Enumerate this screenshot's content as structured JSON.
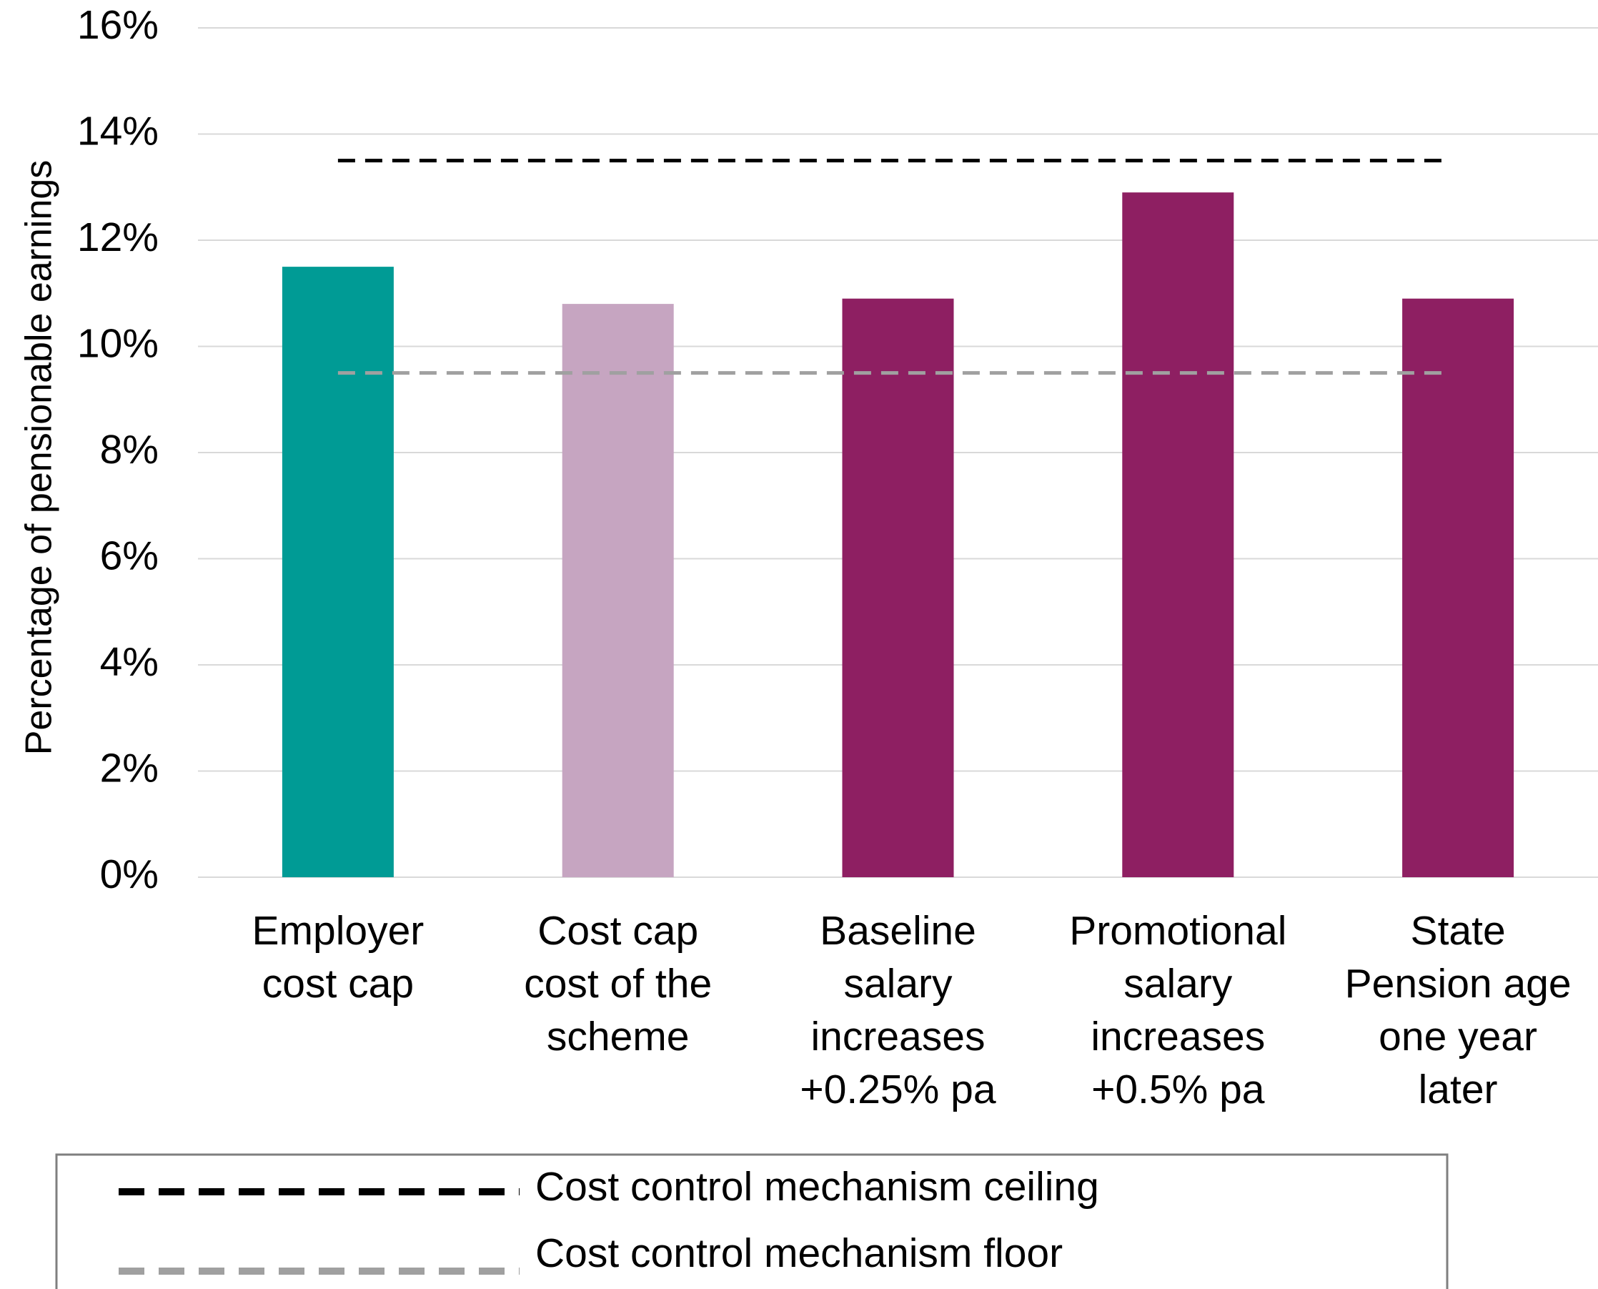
{
  "chart_data": {
    "type": "bar",
    "y_label": "Percentage of pensionable earnings",
    "categories": [
      "Employer\ncost cap",
      "Cost cap\ncost of the\nscheme",
      "Baseline\nsalary\nincreases\n+0.25% pa",
      "Promotional\nsalary\nincreases\n+0.5% pa",
      "State\nPension age\none year\nlater"
    ],
    "values": [
      11.5,
      10.8,
      10.9,
      12.9,
      10.9
    ],
    "colors": [
      "#009b95",
      "#c6a5c1",
      "#8e1f62",
      "#8e1f62",
      "#8e1f62"
    ],
    "reference_lines": [
      {
        "name": "Cost control mechanism ceiling",
        "color": "#000000",
        "value": 13.5
      },
      {
        "name": "Cost control mechanism floor",
        "color": "#a0a0a0",
        "value": 9.5
      }
    ],
    "ylim": [
      0,
      16
    ],
    "yticks": [
      {
        "value": 0,
        "label": "0%"
      },
      {
        "value": 2,
        "label": "2%"
      },
      {
        "value": 4,
        "label": "4%"
      },
      {
        "value": 6,
        "label": "6%"
      },
      {
        "value": 8,
        "label": "8%"
      },
      {
        "value": 10,
        "label": "10%"
      },
      {
        "value": 12,
        "label": "12%"
      },
      {
        "value": 14,
        "label": "14%"
      },
      {
        "value": 16,
        "label": "16%"
      }
    ],
    "grid": true
  }
}
